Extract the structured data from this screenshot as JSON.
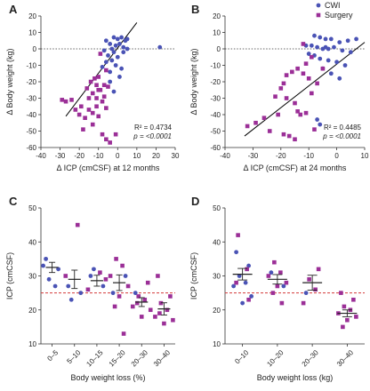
{
  "colors": {
    "cwi": "#4a53b5",
    "surgery": "#9b2f97",
    "threshold": "#d23a3a",
    "regression": "#000000",
    "zero": "#333333"
  },
  "chart_data": [
    {
      "panel": "A",
      "type": "scatter",
      "xlabel": "Δ ICP (cmCSF) at 12 months",
      "ylabel": "Δ Body weight (kg)",
      "xlim": [
        -40,
        30
      ],
      "ylim": [
        -60,
        20
      ],
      "xticks": [
        "-40",
        "-30",
        "-20",
        "-10",
        "0",
        "10",
        "20",
        "30"
      ],
      "yticks": [
        "20",
        "10",
        "0",
        "-10",
        "-20",
        "-30",
        "-40",
        "-50",
        "-60"
      ],
      "r2_text": "R² = 0.4734",
      "p_text": "p = <0.0001",
      "regression": {
        "x": [
          -27,
          10
        ],
        "y": [
          -41,
          16
        ]
      },
      "series": [
        {
          "name": "CWI",
          "marker": "circle",
          "points": [
            [
              -2,
              7
            ],
            [
              0,
              6
            ],
            [
              2,
              7
            ],
            [
              4,
              5
            ],
            [
              -6,
              5
            ],
            [
              -4,
              3
            ],
            [
              -1,
              2
            ],
            [
              1,
              3
            ],
            [
              3,
              1
            ],
            [
              5,
              0
            ],
            [
              -3,
              0
            ],
            [
              -7,
              -1
            ],
            [
              -2,
              -2
            ],
            [
              -5,
              -4
            ],
            [
              0,
              -5
            ],
            [
              -3,
              -7
            ],
            [
              -6,
              -8
            ],
            [
              -1,
              -10
            ],
            [
              2,
              -12
            ],
            [
              -4,
              -14
            ],
            [
              3,
              -2
            ],
            [
              5,
              6
            ],
            [
              -8,
              -11
            ],
            [
              22,
              1
            ],
            [
              -4,
              -20
            ],
            [
              -2,
              -26
            ],
            [
              1,
              -17
            ]
          ]
        },
        {
          "name": "Surgery",
          "marker": "square",
          "points": [
            [
              -9,
              -3
            ],
            [
              -6,
              -13
            ],
            [
              -10,
              -17
            ],
            [
              -12,
              -18
            ],
            [
              -14,
              -20
            ],
            [
              -11,
              -22
            ],
            [
              -16,
              -24
            ],
            [
              -9,
              -25
            ],
            [
              -13,
              -27
            ],
            [
              -5,
              -23
            ],
            [
              -7,
              -29
            ],
            [
              -15,
              -30
            ],
            [
              -11,
              -30
            ],
            [
              -24,
              -31
            ],
            [
              -27,
              -32
            ],
            [
              -19,
              -35
            ],
            [
              -15,
              -37
            ],
            [
              -11,
              -35
            ],
            [
              -13,
              -39
            ],
            [
              -17,
              -42
            ],
            [
              -8,
              -32
            ],
            [
              -6,
              -36
            ],
            [
              -20,
              -40
            ],
            [
              -10,
              -41
            ],
            [
              -22,
              -37
            ],
            [
              -18,
              -49
            ],
            [
              -8,
              -52
            ],
            [
              -13,
              -46
            ],
            [
              -1,
              -52
            ],
            [
              -6,
              -55
            ],
            [
              -4,
              -57
            ],
            [
              -29,
              -31
            ],
            [
              -10,
              -25
            ],
            [
              -7,
              -22
            ]
          ]
        }
      ]
    },
    {
      "panel": "B",
      "type": "scatter",
      "xlabel": "Δ ICP (cmCSF) at 24 months",
      "ylabel": "Δ Body weight (kg)",
      "xlim": [
        -40,
        10
      ],
      "ylim": [
        -60,
        20
      ],
      "xticks": [
        "-40",
        "-30",
        "-20",
        "-10",
        "0",
        "10"
      ],
      "yticks": [
        "20",
        "10",
        "0",
        "-10",
        "-20",
        "-30",
        "-40",
        "-50",
        "-60"
      ],
      "r2_text": "R² = 0.4485",
      "p_text": "p = <0.0001",
      "legend": [
        "CWI",
        "Surgery"
      ],
      "regression": {
        "x": [
          -33,
          10
        ],
        "y": [
          -53,
          4
        ]
      },
      "series": [
        {
          "name": "CWI",
          "marker": "circle",
          "points": [
            [
              -8,
              8
            ],
            [
              -6,
              7
            ],
            [
              -4,
              6
            ],
            [
              -2,
              6
            ],
            [
              1,
              4
            ],
            [
              4,
              5
            ],
            [
              7,
              6
            ],
            [
              -11,
              2
            ],
            [
              -9,
              2
            ],
            [
              -7,
              1
            ],
            [
              -5,
              0
            ],
            [
              -3,
              0
            ],
            [
              -1,
              1
            ],
            [
              2,
              -1
            ],
            [
              5,
              -2
            ],
            [
              -10,
              -3
            ],
            [
              -8,
              -4
            ],
            [
              -6,
              -6
            ],
            [
              -3,
              -7
            ],
            [
              0,
              -8
            ],
            [
              3,
              -10
            ],
            [
              -5,
              -12
            ],
            [
              -2,
              -15
            ],
            [
              1,
              -18
            ],
            [
              -7,
              -43
            ],
            [
              -6,
              -46
            ],
            [
              -4,
              1
            ]
          ]
        },
        {
          "name": "Surgery",
          "marker": "square",
          "points": [
            [
              -12,
              3
            ],
            [
              -9,
              -5
            ],
            [
              -11,
              -9
            ],
            [
              -14,
              -12
            ],
            [
              -16,
              -14
            ],
            [
              -12,
              -15
            ],
            [
              -18,
              -16
            ],
            [
              -10,
              -18
            ],
            [
              -19,
              -21
            ],
            [
              -7,
              -21
            ],
            [
              -20,
              -24
            ],
            [
              -22,
              -29
            ],
            [
              -18,
              -30
            ],
            [
              -15,
              -33
            ],
            [
              -14,
              -38
            ],
            [
              -13,
              -40
            ],
            [
              -11,
              -39
            ],
            [
              -21,
              -40
            ],
            [
              -26,
              -42
            ],
            [
              -29,
              -45
            ],
            [
              -32,
              -47
            ],
            [
              -24,
              -50
            ],
            [
              -19,
              -52
            ],
            [
              -17,
              -53
            ],
            [
              -15,
              -55
            ],
            [
              -8,
              -49
            ],
            [
              -9,
              -27
            ],
            [
              -5,
              -12
            ]
          ]
        }
      ]
    },
    {
      "panel": "C",
      "type": "scatter",
      "xlabel": "Body weight loss (%)",
      "ylabel": "ICP (cmCSF)",
      "ylim": [
        10,
        50
      ],
      "yticks": [
        "50",
        "40",
        "30",
        "20",
        "10"
      ],
      "threshold": 25,
      "categories": [
        "0–5",
        "5–10",
        "10–15",
        "15–20",
        "20–30",
        "30–40"
      ],
      "summary": [
        {
          "mean": 32.5,
          "sem": 1.5
        },
        {
          "mean": 29.0,
          "sem": 2.7
        },
        {
          "mean": 28.6,
          "sem": 1.6
        },
        {
          "mean": 28.0,
          "sem": 2.3
        },
        {
          "mean": 22.3,
          "sem": 1.3
        },
        {
          "mean": 20.3,
          "sem": 1.8
        }
      ],
      "groups": [
        {
          "cwi": [
            35,
            32,
            29,
            27,
            33
          ],
          "surgery": []
        },
        {
          "cwi": [
            27,
            25,
            23
          ],
          "surgery": [
            45,
            30
          ]
        },
        {
          "cwi": [
            30,
            27,
            32
          ],
          "surgery": [
            31,
            26,
            29
          ]
        },
        {
          "cwi": [
            25,
            30
          ],
          "surgery": [
            35,
            33,
            30,
            27,
            24,
            21,
            13
          ]
        },
        {
          "cwi": [
            25
          ],
          "surgery": [
            28,
            24,
            23,
            21,
            20,
            18,
            22
          ]
        },
        {
          "cwi": [],
          "surgery": [
            30,
            24,
            22,
            20,
            18,
            17,
            16,
            19
          ]
        }
      ]
    },
    {
      "panel": "D",
      "type": "scatter",
      "xlabel": "Body weight loss (kg)",
      "ylabel": "ICP (cmCSF)",
      "ylim": [
        10,
        50
      ],
      "yticks": [
        "50",
        "40",
        "30",
        "20",
        "10"
      ],
      "threshold": 25,
      "categories": [
        "0–10",
        "10–20",
        "20–30",
        "30–40"
      ],
      "summary": [
        {
          "mean": 30.5,
          "sem": 1.7
        },
        {
          "mean": 29.0,
          "sem": 1.4
        },
        {
          "mean": 28.0,
          "sem": 2.2
        },
        {
          "mean": 19.0,
          "sem": 1.0
        }
      ],
      "groups": [
        {
          "cwi": [
            37,
            33,
            30,
            28,
            27,
            24,
            22
          ],
          "surgery": [
            42,
            32,
            28,
            23
          ]
        },
        {
          "cwi": [
            31,
            27
          ],
          "surgery": [
            34,
            31,
            30,
            28,
            27,
            25,
            22
          ]
        },
        {
          "cwi": [
            25
          ],
          "surgery": [
            32,
            29,
            26,
            22
          ]
        },
        {
          "cwi": [],
          "surgery": [
            25,
            23,
            21,
            20,
            19,
            18,
            17,
            15
          ]
        }
      ]
    }
  ]
}
